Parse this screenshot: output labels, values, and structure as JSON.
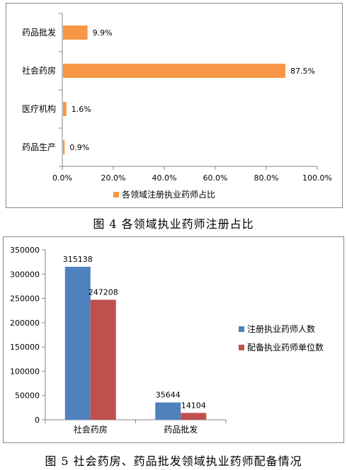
{
  "chart_data": [
    {
      "type": "bar",
      "orientation": "horizontal",
      "categories": [
        "药品生产",
        "医疗机构",
        "社会药房",
        "药品批发"
      ],
      "series": [
        {
          "name": "各领域注册执业药师占比",
          "values": [
            0.9,
            1.6,
            87.5,
            9.9
          ],
          "color": "#F79646"
        }
      ],
      "data_labels": [
        "0.9%",
        "1.6%",
        "87.5%",
        "9.9%"
      ],
      "xlim": [
        0,
        100
      ],
      "x_ticks": [
        "0.0%",
        "20.0%",
        "40.0%",
        "60.0%",
        "80.0%",
        "100.0%"
      ],
      "grid": false,
      "legend": "bottom",
      "title": "",
      "xlabel": "",
      "ylabel": ""
    },
    {
      "type": "bar",
      "categories": [
        "社会药房",
        "药品批发"
      ],
      "series": [
        {
          "name": "注册执业药师人数",
          "values": [
            315138,
            35644
          ],
          "color": "#4F81BD"
        },
        {
          "name": "配备执业药师单位数",
          "values": [
            247208,
            14104
          ],
          "color": "#C0504D"
        }
      ],
      "ylim": [
        0,
        350000
      ],
      "y_ticks": [
        "0",
        "50000",
        "100000",
        "150000",
        "200000",
        "250000",
        "300000",
        "350000"
      ],
      "grid": false,
      "legend": "right",
      "title": "",
      "xlabel": "",
      "ylabel": ""
    }
  ],
  "captions": {
    "chart1": "图 4 各领域执业药师注册占比",
    "chart2": "图 5 社会药房、药品批发领域执业药师配备情况"
  }
}
